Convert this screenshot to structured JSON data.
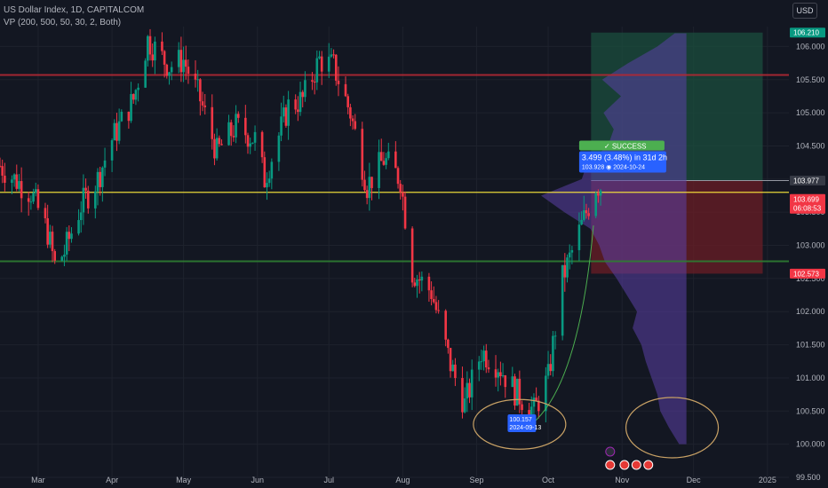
{
  "header": {
    "title": "US Dollar Index, 1D, CAPITALCOM",
    "indicator": "VP (200, 500, 50, 30, 2, Both)",
    "currency": "USD"
  },
  "colors": {
    "background": "#131722",
    "up": "#089981",
    "down": "#f23645",
    "grid": "#1e222d",
    "axis_text": "#b2b5be",
    "resistance": "#b22833",
    "support": "#2e7d32",
    "current": "#ffeb3b",
    "target_zone": "#1b4d3e",
    "stop_zone": "#6b1d26",
    "volume_profile": "#5b3fa6",
    "highlight_circle": "#c8a165"
  },
  "chart_data": {
    "type": "candlestick",
    "x_range": [
      "2024-02-14",
      "2025-01-10"
    ],
    "y_range": [
      99.5,
      106.3
    ],
    "x_ticks": [
      {
        "date": "2024-03-01",
        "label": "Mar"
      },
      {
        "date": "2024-04-01",
        "label": "Apr"
      },
      {
        "date": "2024-05-01",
        "label": "May"
      },
      {
        "date": "2024-06-01",
        "label": "Jun"
      },
      {
        "date": "2024-07-01",
        "label": "Jul"
      },
      {
        "date": "2024-08-01",
        "label": "Aug"
      },
      {
        "date": "2024-09-01",
        "label": "Sep"
      },
      {
        "date": "2024-10-01",
        "label": "Oct"
      },
      {
        "date": "2024-11-01",
        "label": "Nov"
      },
      {
        "date": "2024-12-01",
        "label": "Dec"
      },
      {
        "date": "2025-01-01",
        "label": "2025"
      }
    ],
    "y_ticks": [
      {
        "value": 106.0,
        "label": "106.000"
      },
      {
        "value": 105.5,
        "label": "105.500"
      },
      {
        "value": 105.0,
        "label": "105.000"
      },
      {
        "value": 104.5,
        "label": "104.500"
      },
      {
        "value": 104.0,
        "label": "104.000"
      },
      {
        "value": 103.5,
        "label": "103.500"
      },
      {
        "value": 103.0,
        "label": "103.000"
      },
      {
        "value": 102.5,
        "label": "102.500"
      },
      {
        "value": 102.0,
        "label": "102.000"
      },
      {
        "value": 101.5,
        "label": "101.500"
      },
      {
        "value": 101.0,
        "label": "101.000"
      },
      {
        "value": 100.5,
        "label": "100.500"
      },
      {
        "value": 100.0,
        "label": "100.000"
      },
      {
        "value": 99.5,
        "label": "99.500"
      }
    ],
    "price_tags": [
      {
        "value": 106.21,
        "label": "106.210",
        "color": "#089981"
      },
      {
        "value": 103.977,
        "label": "103.977",
        "color": "#363a45"
      },
      {
        "value": 103.699,
        "label": "103.699",
        "sub": "06:08:53",
        "color": "#f23645"
      },
      {
        "value": 102.573,
        "label": "102.573",
        "color": "#f23645"
      }
    ],
    "horizontal_lines": [
      {
        "value": 105.57,
        "color": "#b22833",
        "label": "resistance"
      },
      {
        "value": 103.8,
        "color": "#ffeb3b",
        "label": "current"
      },
      {
        "value": 102.76,
        "color": "#2e7d32",
        "label": "support"
      }
    ],
    "position": {
      "start_date": "2024-10-19",
      "end_date": "2024-12-30",
      "entry": 103.977,
      "target": 106.21,
      "stop": 102.573
    },
    "annotations": {
      "success_label": "✓ SUCCESS",
      "measure_line1": "3.499 (3.48%) in 31d 2h",
      "measure_line2": "103.928 ◉ 2024-10-24",
      "low_label_line1": "100.157",
      "low_label_line2": "2024-09-13"
    },
    "ohlc_waypoints": [
      [
        "2024-02-14",
        104.2
      ],
      [
        "2024-02-20",
        104.0
      ],
      [
        "2024-02-27",
        103.8
      ],
      [
        "2024-03-05",
        103.2
      ],
      [
        "2024-03-08",
        102.7
      ],
      [
        "2024-03-12",
        102.9
      ],
      [
        "2024-03-19",
        103.6
      ],
      [
        "2024-03-26",
        104.0
      ],
      [
        "2024-04-01",
        104.6
      ],
      [
        "2024-04-10",
        105.2
      ],
      [
        "2024-04-16",
        106.1
      ],
      [
        "2024-04-25",
        105.7
      ],
      [
        "2024-05-01",
        105.8
      ],
      [
        "2024-05-08",
        105.2
      ],
      [
        "2024-05-15",
        104.4
      ],
      [
        "2024-05-23",
        104.8
      ],
      [
        "2024-05-31",
        104.6
      ],
      [
        "2024-06-04",
        104.0
      ],
      [
        "2024-06-14",
        105.1
      ],
      [
        "2024-06-20",
        105.2
      ],
      [
        "2024-06-27",
        105.8
      ],
      [
        "2024-07-03",
        105.7
      ],
      [
        "2024-07-10",
        105.0
      ],
      [
        "2024-07-17",
        103.9
      ],
      [
        "2024-07-24",
        104.3
      ],
      [
        "2024-07-31",
        104.0
      ],
      [
        "2024-08-05",
        102.6
      ],
      [
        "2024-08-13",
        102.3
      ],
      [
        "2024-08-21",
        101.2
      ],
      [
        "2024-08-27",
        100.6
      ],
      [
        "2024-09-03",
        101.4
      ],
      [
        "2024-09-10",
        101.2
      ],
      [
        "2024-09-17",
        100.8
      ],
      [
        "2024-09-25",
        100.5
      ],
      [
        "2024-10-01",
        101.0
      ],
      [
        "2024-10-07",
        102.5
      ],
      [
        "2024-10-14",
        103.2
      ],
      [
        "2024-10-21",
        103.9
      ],
      [
        "2024-10-24",
        103.9
      ]
    ],
    "volume_profile": [
      [
        100.0,
        0.05
      ],
      [
        100.25,
        0.12
      ],
      [
        100.5,
        0.18
      ],
      [
        100.75,
        0.2
      ],
      [
        101.0,
        0.24
      ],
      [
        101.25,
        0.28
      ],
      [
        101.5,
        0.31
      ],
      [
        101.75,
        0.37
      ],
      [
        102.0,
        0.34
      ],
      [
        102.25,
        0.41
      ],
      [
        102.5,
        0.48
      ],
      [
        102.75,
        0.56
      ],
      [
        103.0,
        0.6
      ],
      [
        103.25,
        0.66
      ],
      [
        103.5,
        0.84
      ],
      [
        103.75,
        1.0
      ],
      [
        104.0,
        0.72
      ],
      [
        104.25,
        0.68
      ],
      [
        104.5,
        0.54
      ],
      [
        104.75,
        0.5
      ],
      [
        105.0,
        0.57
      ],
      [
        105.25,
        0.45
      ],
      [
        105.5,
        0.58
      ],
      [
        105.75,
        0.4
      ],
      [
        106.0,
        0.2
      ],
      [
        106.2,
        0.08
      ]
    ]
  }
}
